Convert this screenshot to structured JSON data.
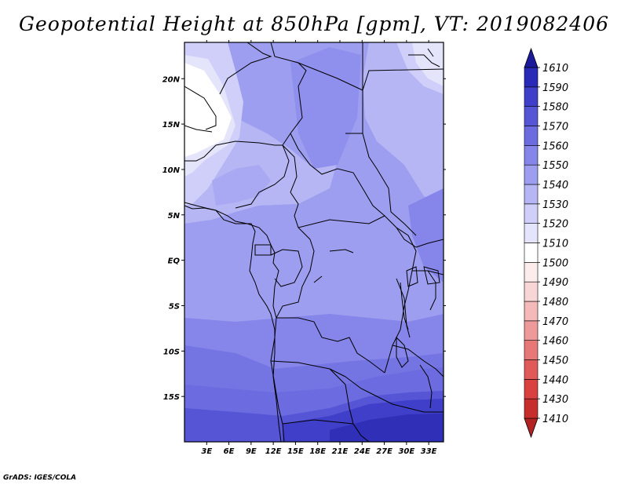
{
  "title": "Geopotential Height at 850hPa [gpm], VT: 2019082406",
  "credit": "GrADS: IGES/COLA",
  "map": {
    "lon_ticks": [
      "3E",
      "6E",
      "9E",
      "12E",
      "15E",
      "18E",
      "21E",
      "24E",
      "27E",
      "30E",
      "33E"
    ],
    "lat_ticks": [
      "20N",
      "15N",
      "10N",
      "5N",
      "EQ",
      "5S",
      "10S",
      "15S"
    ],
    "lon_range": [
      0,
      35
    ],
    "lat_range": [
      -20,
      24
    ]
  },
  "colorbar": {
    "levels": [
      "1410",
      "1430",
      "1440",
      "1450",
      "1460",
      "1470",
      "1480",
      "1490",
      "1500",
      "1510",
      "1520",
      "1530",
      "1540",
      "1550",
      "1560",
      "1570",
      "1580",
      "1590",
      "1610"
    ],
    "colors": [
      "#b22222",
      "#c62d2d",
      "#d94040",
      "#e05a5a",
      "#e87878",
      "#ee9a9a",
      "#f4baba",
      "#f8d6d6",
      "#fcecec",
      "#ffffff",
      "#e4e4fb",
      "#cfcffa",
      "#b6b6f5",
      "#9e9ef0",
      "#8585ea",
      "#6c6ce0",
      "#5555d6",
      "#3f3fc9",
      "#2a2ab8",
      "#1a1a9a"
    ]
  },
  "colors": {
    "frame": "#000000",
    "background": "#ffffff"
  }
}
